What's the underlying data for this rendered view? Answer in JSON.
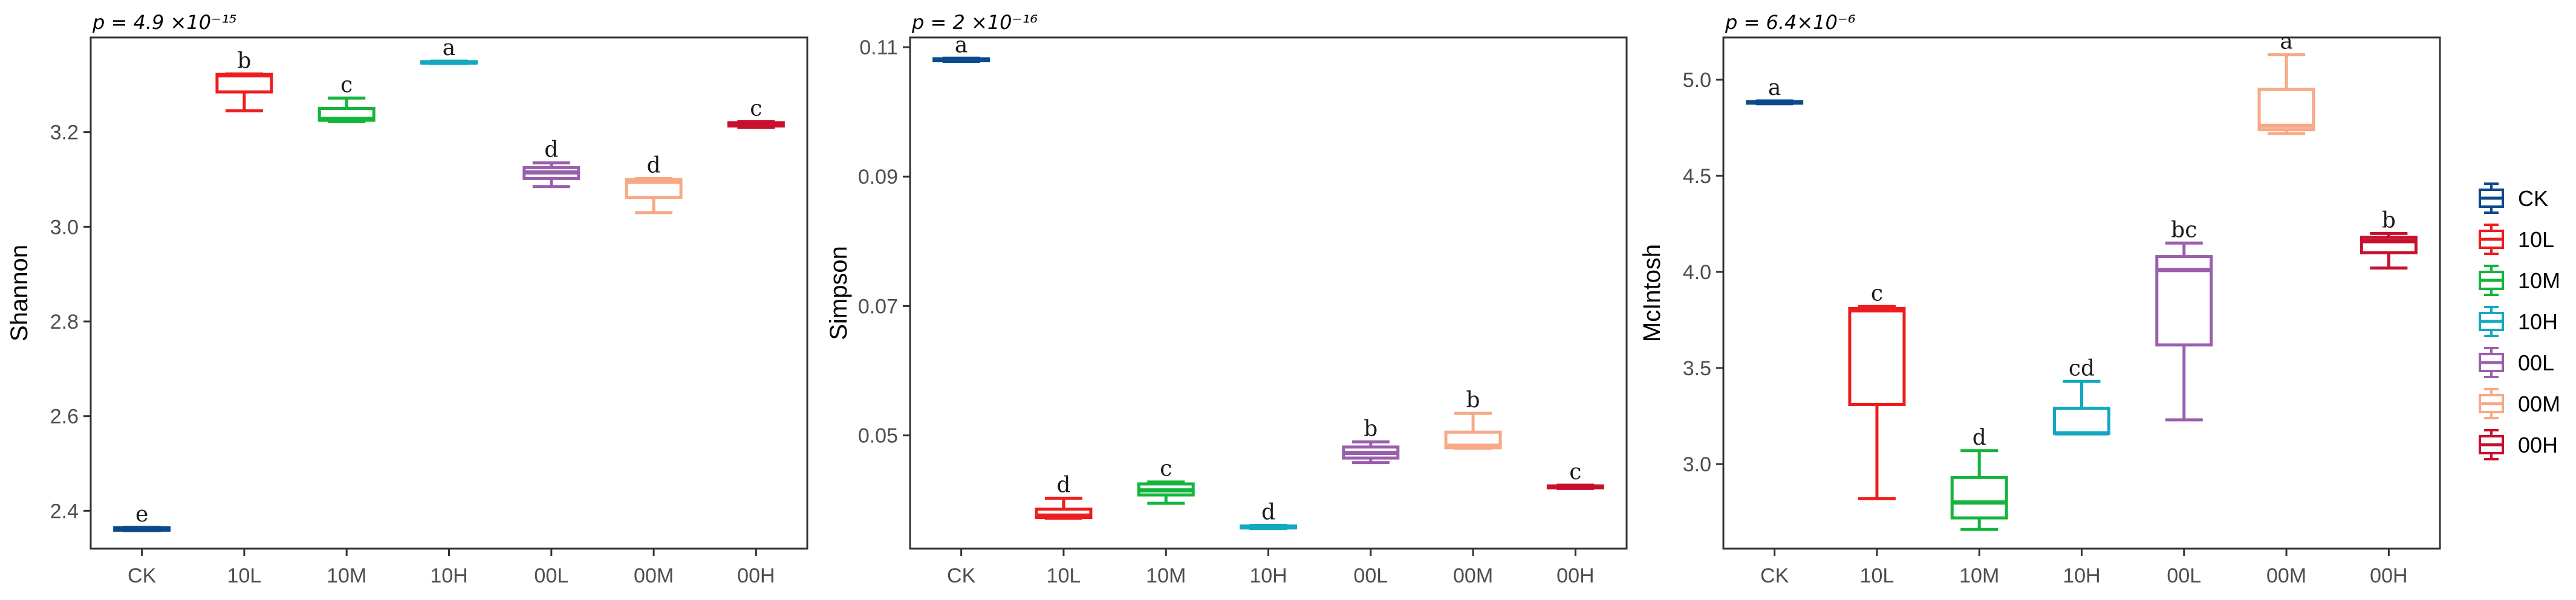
{
  "categories": [
    "CK",
    "10L",
    "10M",
    "10H",
    "00L",
    "00M",
    "00H"
  ],
  "colors": {
    "CK": "#0a4a8c",
    "10L": "#ee1c1c",
    "10M": "#14b53c",
    "10H": "#13a8c0",
    "00L": "#9a5fac",
    "00M": "#f7a985",
    "00H": "#c8102e"
  },
  "legend": {
    "items": [
      "CK",
      "10L",
      "10M",
      "10H",
      "00L",
      "00M",
      "00H"
    ],
    "placement": "right"
  },
  "chart_data": [
    {
      "type": "box",
      "ylabel": "Shannon",
      "p_label": "p = 4.9 ×10⁻¹⁵",
      "ylim": [
        2.32,
        3.4
      ],
      "yticks": [
        "2.4",
        "2.6",
        "2.8",
        "3.0",
        "3.2"
      ],
      "ytick_values": [
        2.4,
        2.6,
        2.8,
        3.0,
        3.2
      ],
      "boxes": [
        {
          "category": "CK",
          "min": 2.358,
          "q1": 2.359,
          "median": 2.361,
          "q3": 2.364,
          "max": 2.365,
          "letter": "e"
        },
        {
          "category": "10L",
          "min": 3.245,
          "q1": 3.285,
          "median": 3.32,
          "q3": 3.322,
          "max": 3.323,
          "letter": "b"
        },
        {
          "category": "10M",
          "min": 3.222,
          "q1": 3.225,
          "median": 3.228,
          "q3": 3.25,
          "max": 3.272,
          "letter": "c"
        },
        {
          "category": "10H",
          "min": 3.345,
          "q1": 3.346,
          "median": 3.347,
          "q3": 3.349,
          "max": 3.35,
          "letter": "a"
        },
        {
          "category": "00L",
          "min": 3.085,
          "q1": 3.102,
          "median": 3.115,
          "q3": 3.125,
          "max": 3.135,
          "letter": "d"
        },
        {
          "category": "00M",
          "min": 3.03,
          "q1": 3.062,
          "median": 3.095,
          "q3": 3.1,
          "max": 3.102,
          "letter": "d"
        },
        {
          "category": "00H",
          "min": 3.21,
          "q1": 3.213,
          "median": 3.217,
          "q3": 3.22,
          "max": 3.222,
          "letter": "c"
        }
      ]
    },
    {
      "type": "box",
      "ylabel": "Simpson",
      "p_label": "p = 2 ×10⁻¹⁶",
      "ylim": [
        0.0325,
        0.1115
      ],
      "yticks": [
        "0.05",
        "0.07",
        "0.09",
        "0.11"
      ],
      "ytick_values": [
        0.05,
        0.07,
        0.09,
        0.11
      ],
      "boxes": [
        {
          "category": "CK",
          "min": 0.1078,
          "q1": 0.1079,
          "median": 0.108,
          "q3": 0.1082,
          "max": 0.1083,
          "letter": "a"
        },
        {
          "category": "10L",
          "min": 0.0372,
          "q1": 0.0373,
          "median": 0.0376,
          "q3": 0.0386,
          "max": 0.0403,
          "letter": "d"
        },
        {
          "category": "10M",
          "min": 0.0395,
          "q1": 0.0408,
          "median": 0.0415,
          "q3": 0.0425,
          "max": 0.0428,
          "letter": "c"
        },
        {
          "category": "10H",
          "min": 0.0356,
          "q1": 0.0357,
          "median": 0.0358,
          "q3": 0.036,
          "max": 0.0361,
          "letter": "d"
        },
        {
          "category": "00L",
          "min": 0.0458,
          "q1": 0.0465,
          "median": 0.0473,
          "q3": 0.0482,
          "max": 0.049,
          "letter": "b"
        },
        {
          "category": "00M",
          "min": 0.048,
          "q1": 0.0481,
          "median": 0.0484,
          "q3": 0.0505,
          "max": 0.0534,
          "letter": "b"
        },
        {
          "category": "00H",
          "min": 0.0418,
          "q1": 0.0419,
          "median": 0.042,
          "q3": 0.0422,
          "max": 0.0423,
          "letter": "c"
        }
      ]
    },
    {
      "type": "box",
      "ylabel": "McIntosh",
      "p_label": "p = 6.4×10⁻⁶",
      "ylim": [
        2.56,
        5.22
      ],
      "yticks": [
        "3.0",
        "3.5",
        "4.0",
        "4.5",
        "5.0"
      ],
      "ytick_values": [
        3.0,
        3.5,
        4.0,
        4.5,
        5.0
      ],
      "boxes": [
        {
          "category": "CK",
          "min": 4.875,
          "q1": 4.878,
          "median": 4.882,
          "q3": 4.886,
          "max": 4.89,
          "letter": "a"
        },
        {
          "category": "10L",
          "min": 2.82,
          "q1": 3.31,
          "median": 3.8,
          "q3": 3.81,
          "max": 3.82,
          "letter": "c"
        },
        {
          "category": "10M",
          "min": 2.66,
          "q1": 2.72,
          "median": 2.8,
          "q3": 2.93,
          "max": 3.07,
          "letter": "d"
        },
        {
          "category": "10H",
          "min": 3.16,
          "q1": 3.16,
          "median": 3.16,
          "q3": 3.29,
          "max": 3.43,
          "letter": "cd"
        },
        {
          "category": "00L",
          "min": 3.23,
          "q1": 3.62,
          "median": 4.01,
          "q3": 4.08,
          "max": 4.15,
          "letter": "bc"
        },
        {
          "category": "00M",
          "min": 4.72,
          "q1": 4.74,
          "median": 4.76,
          "q3": 4.95,
          "max": 5.13,
          "letter": "a"
        },
        {
          "category": "00H",
          "min": 4.02,
          "q1": 4.1,
          "median": 4.16,
          "q3": 4.18,
          "max": 4.2,
          "letter": "b"
        }
      ]
    }
  ]
}
